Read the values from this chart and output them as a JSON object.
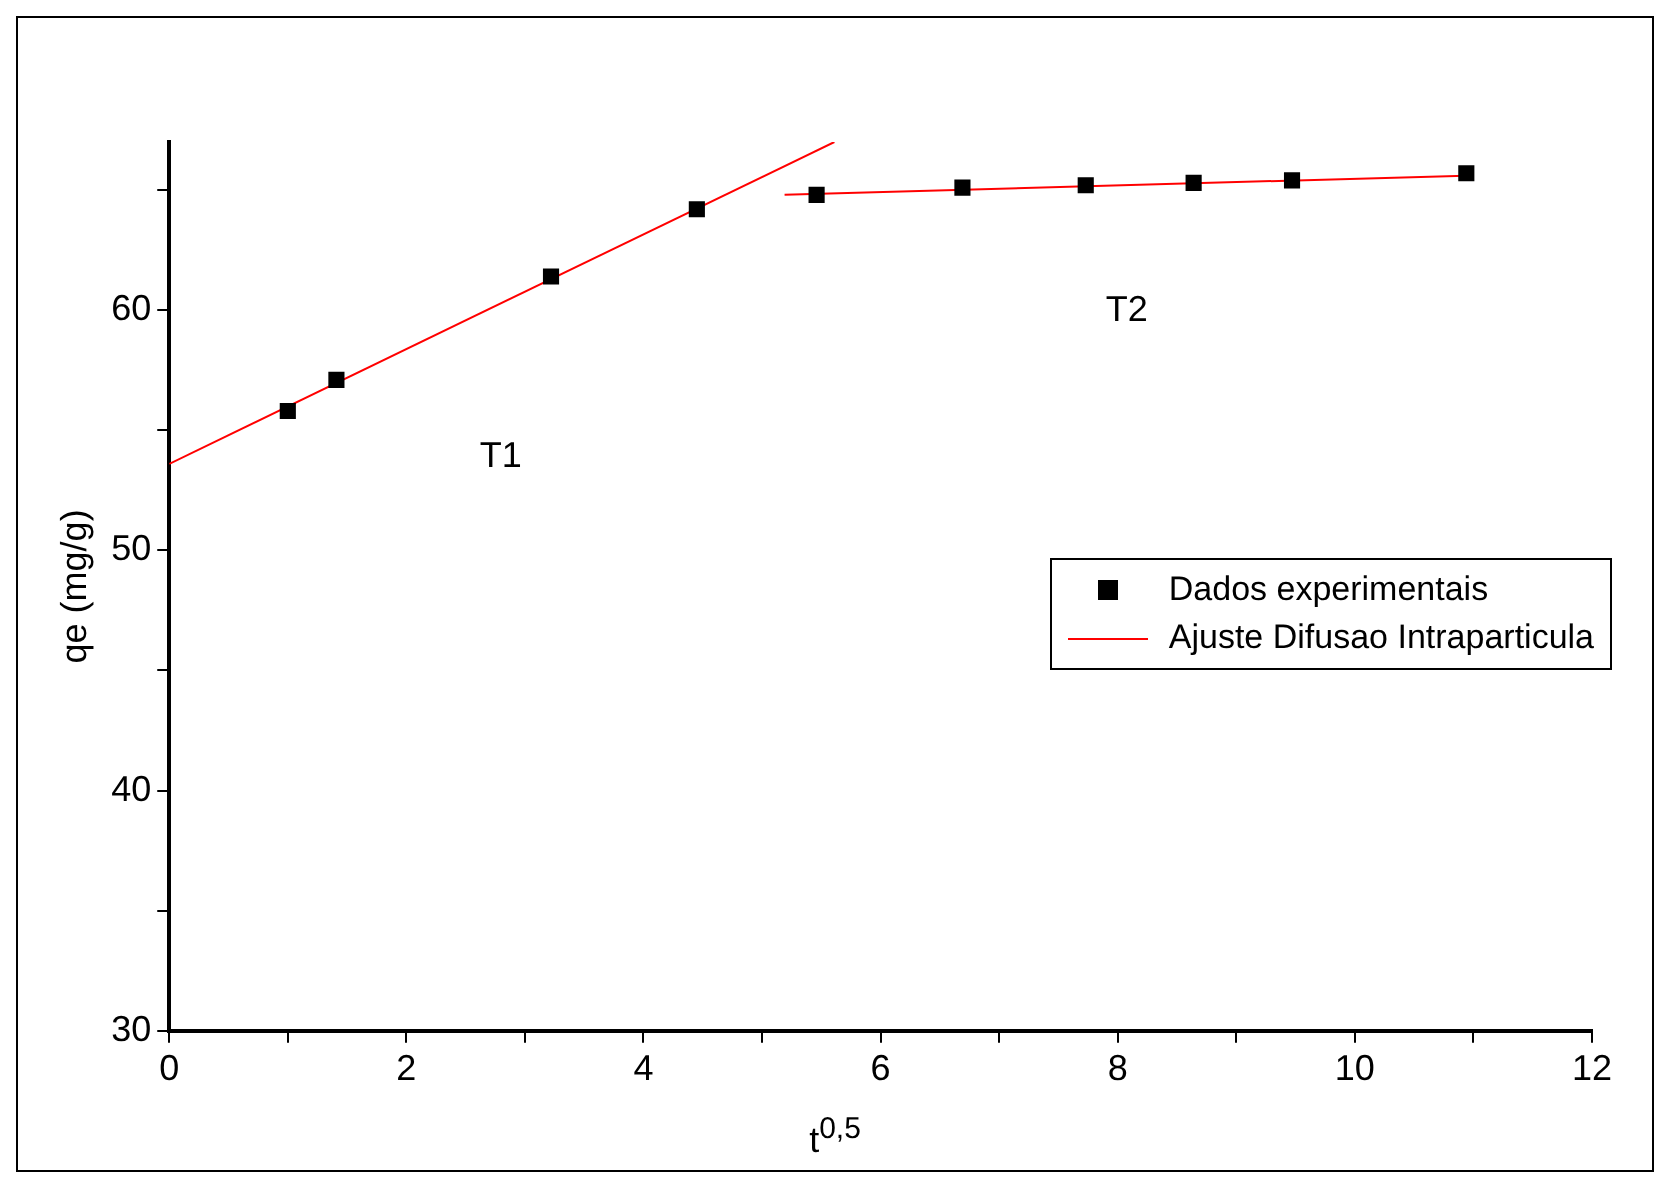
{
  "chart_data": {
    "type": "scatter",
    "xlabel": "t$^{0,5}$",
    "ylabel": "qe (mg/g)",
    "xlim": [
      0,
      12
    ],
    "xticks": [
      0,
      {
        "value": 1,
        "label": null
      },
      2,
      {
        "value": 3,
        "label": null
      },
      4,
      {
        "value": 5,
        "label": null
      },
      6,
      {
        "value": 7,
        "label": null
      },
      8,
      {
        "value": 9,
        "label": null
      },
      10,
      {
        "value": 11,
        "label": null
      },
      12
    ],
    "ylim": [
      30,
      67
    ],
    "yticks": [
      30,
      {
        "value": 35,
        "label": null
      },
      40,
      {
        "value": 45,
        "label": null
      },
      50,
      {
        "value": 55,
        "label": null
      },
      60,
      {
        "value": 65,
        "label": null
      }
    ],
    "grid": false,
    "legend": "right",
    "series": [
      {
        "name": "Dados experimentais",
        "marker": "square",
        "color": "#000000",
        "x": [
          1,
          1.41,
          3.22,
          4.45,
          5.46,
          6.69,
          7.73,
          8.64,
          9.47,
          10.94
        ],
        "values": [
          55.8,
          57.1,
          61.4,
          64.2,
          64.8,
          65.1,
          65.2,
          65.3,
          65.4,
          65.7
        ]
      },
      {
        "name": "Ajuste Difusao Intraparticula",
        "type": "line",
        "marker": "none",
        "line_style": "solid",
        "color": "#ff0000",
        "x": [
          0,
          5.61
        ],
        "values": [
          53.6,
          67
        ]
      },
      {
        "type": "line",
        "marker": "none",
        "line_style": "solid",
        "color": "#ff0000",
        "x": [
          5.19,
          10.93
        ],
        "values": [
          64.8,
          65.6
        ]
      }
    ],
    "annotations": [
      "T1",
      "T2"
    ]
  }
}
